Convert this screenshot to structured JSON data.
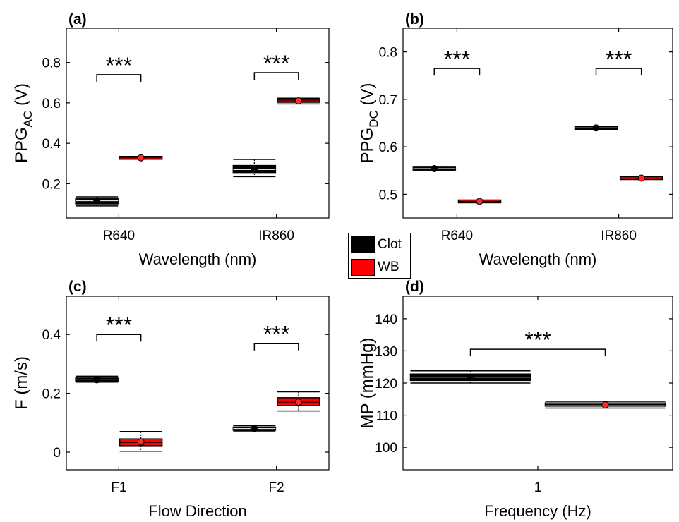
{
  "chart_data": [
    {
      "panel_label": "(a)",
      "type": "box",
      "categories": [
        "R640",
        "IR860"
      ],
      "ylabel": "PPG",
      "ylabel_sub": "AC",
      "ylabel_suffix": " (V)",
      "xlabel": "Wavelength (nm)",
      "ylim": [
        0.03,
        0.97
      ],
      "yticks": [
        0.2,
        0.4,
        0.6,
        0.8
      ],
      "ytick_labels": [
        "0.2",
        "0.4",
        "0.6",
        "0.8"
      ],
      "series": [
        {
          "name": "Clot",
          "boxes": [
            {
              "min": 0.09,
              "q1": 0.1,
              "median": 0.115,
              "q3": 0.125,
              "max": 0.135,
              "mean": 0.115
            },
            {
              "min": 0.235,
              "q1": 0.255,
              "median": 0.27,
              "q3": 0.29,
              "max": 0.32,
              "mean": 0.27
            }
          ]
        },
        {
          "name": "WB",
          "boxes": [
            {
              "min": 0.322,
              "q1": 0.325,
              "median": 0.328,
              "q3": 0.331,
              "max": 0.333,
              "mean": 0.328
            },
            {
              "min": 0.595,
              "q1": 0.603,
              "median": 0.61,
              "q3": 0.617,
              "max": 0.623,
              "mean": 0.61
            }
          ]
        }
      ],
      "significance": [
        {
          "category_index": 0,
          "y": 0.74,
          "label": "***"
        },
        {
          "category_index": 1,
          "y": 0.75,
          "label": "***"
        }
      ]
    },
    {
      "panel_label": "(b)",
      "type": "box",
      "categories": [
        "R640",
        "IR860"
      ],
      "ylabel": "PPG",
      "ylabel_sub": "DC",
      "ylabel_suffix": " (V)",
      "xlabel": "Wavelength (nm)",
      "ylim": [
        0.45,
        0.85
      ],
      "yticks": [
        0.5,
        0.6,
        0.7,
        0.8
      ],
      "ytick_labels": [
        "0.5",
        "0.6",
        "0.7",
        "0.8"
      ],
      "series": [
        {
          "name": "Clot",
          "boxes": [
            {
              "min": 0.551,
              "q1": 0.552,
              "median": 0.554,
              "q3": 0.556,
              "max": 0.557,
              "mean": 0.554
            },
            {
              "min": 0.637,
              "q1": 0.638,
              "median": 0.64,
              "q3": 0.642,
              "max": 0.643,
              "mean": 0.64
            }
          ]
        },
        {
          "name": "WB",
          "boxes": [
            {
              "min": 0.484,
              "q1": 0.4845,
              "median": 0.485,
              "q3": 0.4855,
              "max": 0.486,
              "mean": 0.485
            },
            {
              "min": 0.533,
              "q1": 0.5335,
              "median": 0.534,
              "q3": 0.5345,
              "max": 0.535,
              "mean": 0.534
            }
          ]
        }
      ],
      "significance": [
        {
          "category_index": 0,
          "y": 0.765,
          "label": "***"
        },
        {
          "category_index": 1,
          "y": 0.765,
          "label": "***"
        }
      ]
    },
    {
      "panel_label": "(c)",
      "type": "box",
      "categories": [
        "F1",
        "F2"
      ],
      "ylabel": "F (m/s)",
      "ylabel_sub": "",
      "ylabel_suffix": "",
      "xlabel": "Flow Direction",
      "ylim": [
        -0.06,
        0.53
      ],
      "yticks": [
        0,
        0.2,
        0.4
      ],
      "ytick_labels": [
        "0",
        "0.2",
        "0.4"
      ],
      "series": [
        {
          "name": "Clot",
          "boxes": [
            {
              "min": 0.238,
              "q1": 0.24,
              "median": 0.246,
              "q3": 0.252,
              "max": 0.258,
              "mean": 0.246
            },
            {
              "min": 0.072,
              "q1": 0.075,
              "median": 0.08,
              "q3": 0.085,
              "max": 0.09,
              "mean": 0.08
            }
          ]
        },
        {
          "name": "WB",
          "boxes": [
            {
              "min": 0.003,
              "q1": 0.022,
              "median": 0.033,
              "q3": 0.045,
              "max": 0.07,
              "mean": 0.035
            },
            {
              "min": 0.14,
              "q1": 0.158,
              "median": 0.17,
              "q3": 0.185,
              "max": 0.205,
              "mean": 0.17
            }
          ]
        }
      ],
      "significance": [
        {
          "category_index": 0,
          "y": 0.4,
          "label": "***"
        },
        {
          "category_index": 1,
          "y": 0.37,
          "label": "***"
        }
      ]
    },
    {
      "panel_label": "(d)",
      "type": "box",
      "categories": [
        "1"
      ],
      "ylabel": "MP (mmHg)",
      "ylabel_sub": "",
      "ylabel_suffix": "",
      "xlabel": "Frequency (Hz)",
      "ylim": [
        93,
        147
      ],
      "yticks": [
        100,
        110,
        120,
        130,
        140
      ],
      "ytick_labels": [
        "100",
        "110",
        "120",
        "130",
        "140"
      ],
      "series": [
        {
          "name": "Clot",
          "boxes": [
            {
              "min": 120.0,
              "q1": 120.8,
              "median": 121.8,
              "q3": 122.8,
              "max": 123.8,
              "mean": 121.7
            }
          ]
        },
        {
          "name": "WB",
          "boxes": [
            {
              "min": 112.2,
              "q1": 112.8,
              "median": 113.3,
              "q3": 113.8,
              "max": 114.3,
              "mean": 113.2
            }
          ]
        }
      ],
      "significance": [
        {
          "category_index": 0,
          "y": 130.5,
          "label": "***"
        }
      ]
    }
  ],
  "legend": {
    "items": [
      {
        "label": "Clot",
        "color": "#000000"
      },
      {
        "label": "WB",
        "color": "#ff0000"
      }
    ]
  },
  "colors": {
    "clot": "#000000",
    "wb": "#ff0000",
    "mean_dot_wb": "#ff2a2a",
    "axis": "#000000"
  }
}
